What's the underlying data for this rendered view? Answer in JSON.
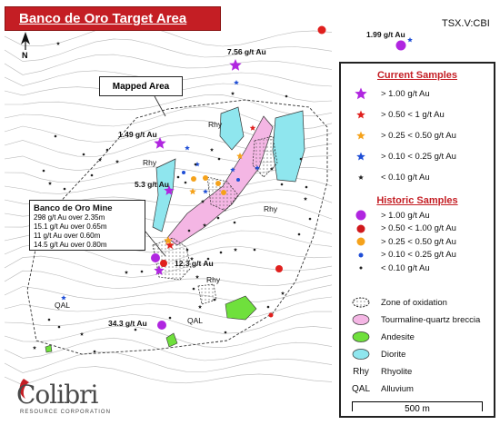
{
  "title": "Banco de Oro Target Area",
  "ticker": "TSX.V:CBI",
  "north_label": "N",
  "callouts": {
    "mapped_area": "Mapped Area",
    "mine": {
      "title": "Banco de Oro Mine",
      "lines": [
        "298 g/t Au over 2.35m",
        "15.1 g/t Au over 0.65m",
        "11 g/t Au over 0.60m",
        "14.5 g/t Au over 0.80m"
      ]
    }
  },
  "sample_labels": {
    "s756": "7.56 g/t Au",
    "s199": "1.99 g/t Au",
    "s149": "1.49 g/t Au",
    "s53": "5.3 g/t Au",
    "s123": "12.3 g/t Au",
    "s343": "34.3 g/t Au"
  },
  "unit_labels": {
    "rhy_1": "Rhy",
    "rhy_2": "Rhy",
    "rhy_3": "Rhy",
    "rhy_4": "Rhy",
    "qal_1": "QAL",
    "qal_2": "QAL"
  },
  "legend": {
    "current_title": "Current Samples",
    "current": [
      {
        "label": "> 1.00 g/t Au",
        "color": "#b026e0",
        "symbol": "star-large"
      },
      {
        "label": "> 0.50 < 1 g/t Au",
        "color": "#e0201e",
        "symbol": "star"
      },
      {
        "label": "> 0.25 < 0.50 g/t Au",
        "color": "#f5a21b",
        "symbol": "star"
      },
      {
        "label": "> 0.10 < 0.25 g/t Au",
        "color": "#1f4ed6",
        "symbol": "star"
      },
      {
        "label": "< 0.10 g/t Au",
        "color": "#222222",
        "symbol": "star-small"
      }
    ],
    "historic_title": "Historic Samples",
    "historic": [
      {
        "label": "> 1.00 g/t Au",
        "color": "#b026e0",
        "symbol": "circle-large"
      },
      {
        "label": "> 0.50 < 1.00 g/t Au",
        "color": "#d0191c",
        "symbol": "circle"
      },
      {
        "label": "> 0.25 < 0.50 g/t Au",
        "color": "#f5a21b",
        "symbol": "circle"
      },
      {
        "label": "> 0.10 < 0.25 g/t Au",
        "color": "#1f4ed6",
        "symbol": "circle-small"
      },
      {
        "label": "< 0.10 g/t Au",
        "color": "#222222",
        "symbol": "circle-tiny"
      }
    ],
    "units": [
      {
        "label": "Zone of oxidation",
        "symbol": "oxidation"
      },
      {
        "label": "Tourmaline-quartz breccia",
        "symbol": "breccia",
        "color": "#f4b6e4"
      },
      {
        "label": "Andesite",
        "symbol": "andesite",
        "color": "#6fe03c"
      },
      {
        "label": "Diorite",
        "symbol": "diorite",
        "color": "#8fe6ee"
      },
      {
        "label": "Rhyolite",
        "symbol": "text",
        "code": "Rhy"
      },
      {
        "label": "Alluvium",
        "symbol": "text",
        "code": "QAL"
      }
    ],
    "scale": "500 m"
  },
  "logo": {
    "word": "Colibri",
    "subtitle": "RESOURCE CORPORATION"
  }
}
